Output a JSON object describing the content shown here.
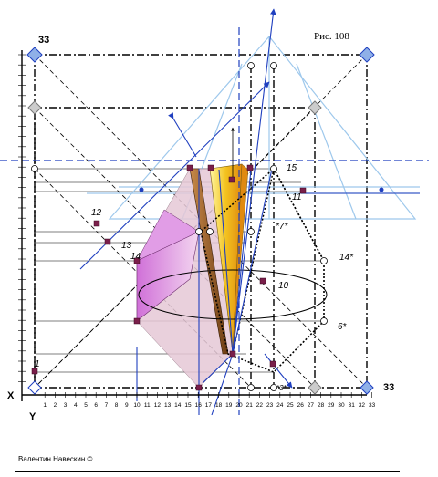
{
  "figure": {
    "title": "Рис. 108",
    "author": "Валентин Навескин ©",
    "corner_label_left": "33",
    "corner_label_right": "33",
    "axis_x_label": "X",
    "axis_y_label": "Y",
    "x_ticks": [
      "1",
      "2",
      "3",
      "4",
      "5",
      "6",
      "7",
      "8",
      "9",
      "10",
      "11",
      "12",
      "13",
      "14",
      "15",
      "16",
      "17",
      "18",
      "19",
      "20",
      "21",
      "22",
      "23",
      "24",
      "25",
      "26",
      "27",
      "28",
      "29",
      "30",
      "31",
      "32",
      "33"
    ],
    "point_labels": {
      "p1": "1",
      "p12": "12",
      "p13": "13",
      "p14": "14",
      "p10": "10",
      "p11": "11",
      "p15": "15",
      "p14s": "14*",
      "p6s": "6*",
      "p7s": "*7*",
      "p3s": "*3*"
    }
  },
  "colors": {
    "blue": "#1f3fbf",
    "light_blue": "#8fc0ea",
    "violet": "#d98bd9",
    "pink": "#e6c8d6",
    "gold": "#f0c020",
    "brown": "#8b5a2b",
    "marker": "#7a1f4a"
  }
}
